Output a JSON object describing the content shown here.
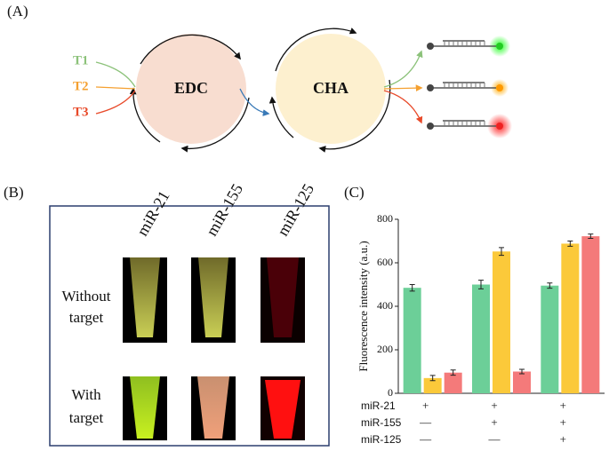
{
  "panel_a": {
    "label": "(A)",
    "inputs": [
      "T1",
      "T2",
      "T3"
    ],
    "circles": [
      "EDC",
      "CHA"
    ]
  },
  "panel_b": {
    "label": "(B)",
    "columns": [
      "miR-21",
      "miR-155",
      "miR-125"
    ],
    "rows": [
      [
        "Without",
        "target"
      ],
      [
        "With",
        "target"
      ]
    ]
  },
  "chart_data": {
    "type": "bar",
    "label": "(C)",
    "ylabel": "Fluorescence intensity (a.u.)",
    "categories": [
      null,
      null,
      null
    ],
    "series": [
      {
        "name": "miR-21",
        "color": "#6ccf98",
        "values": [
          485,
          500,
          495
        ],
        "errors": [
          15,
          20,
          12
        ]
      },
      {
        "name": "miR-155",
        "color": "#fbc93a",
        "values": [
          70,
          652,
          688
        ],
        "errors": [
          12,
          18,
          12
        ]
      },
      {
        "name": "miR-125",
        "color": "#f47a7a",
        "values": [
          95,
          100,
          722
        ],
        "errors": [
          12,
          10,
          10
        ]
      }
    ],
    "ylim": [
      0,
      800
    ],
    "yticks": [
      0,
      200,
      400,
      600,
      800
    ],
    "conditions": [
      {
        "name": "miR-21",
        "marks": [
          "+",
          "+",
          "+"
        ]
      },
      {
        "name": "miR-155",
        "marks": [
          "—",
          "+",
          "+"
        ]
      },
      {
        "name": "miR-125",
        "marks": [
          "—",
          "—",
          "+"
        ]
      }
    ]
  }
}
